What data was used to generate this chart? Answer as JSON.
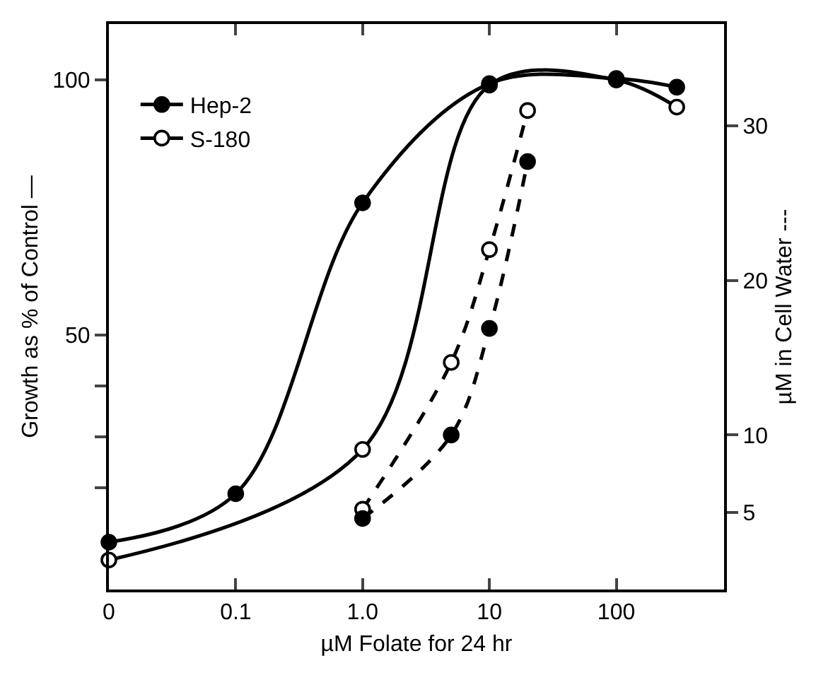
{
  "chart_data": {
    "type": "line",
    "xlabel": "µM Folate for 24 hr",
    "ylabel": "Growth as % of Control —",
    "y2label": "µM in Cell Water ---",
    "log": "x",
    "xlim": [
      0.01,
      708
    ],
    "xticks": [
      {
        "value": 0.01,
        "label": "0"
      },
      0.1,
      {
        "value": 1,
        "label": "1.0"
      },
      10,
      100
    ],
    "ylim": [
      0,
      111
    ],
    "yticks": [
      {
        "value": 20,
        "label": null
      },
      {
        "value": 30,
        "label": null
      },
      {
        "value": 40,
        "label": null
      },
      50,
      100
    ],
    "y2lim": [
      0,
      36.6
    ],
    "y2ticks": [
      5,
      10,
      20,
      30
    ],
    "marker": "circle",
    "legend": "top left",
    "series": [
      {
        "name": "Hep-2",
        "color": "#000000",
        "line_style": "solid",
        "x": [
          0.01,
          0.1,
          1,
          10,
          100,
          300
        ],
        "values": [
          9.3,
          18.8,
          75.9,
          99.3,
          100.3,
          98.6
        ]
      },
      {
        "name": "S-180",
        "color": "#ffffff",
        "line_style": "solid",
        "x": [
          0.01,
          1,
          10,
          100,
          300
        ],
        "values": [
          5.8,
          27.5,
          99.0,
          100.0,
          94.7
        ]
      },
      {
        "color": "#000000",
        "line_style": "dashed",
        "axis": "y2",
        "x": [
          1,
          5,
          10,
          20
        ],
        "values": [
          4.6,
          10.0,
          16.9,
          27.7
        ]
      },
      {
        "color": "#ffffff",
        "line_style": "dashed",
        "axis": "y2",
        "x": [
          1,
          5,
          10,
          20
        ],
        "values": [
          5.2,
          14.7,
          22.0,
          31.0
        ]
      }
    ]
  }
}
